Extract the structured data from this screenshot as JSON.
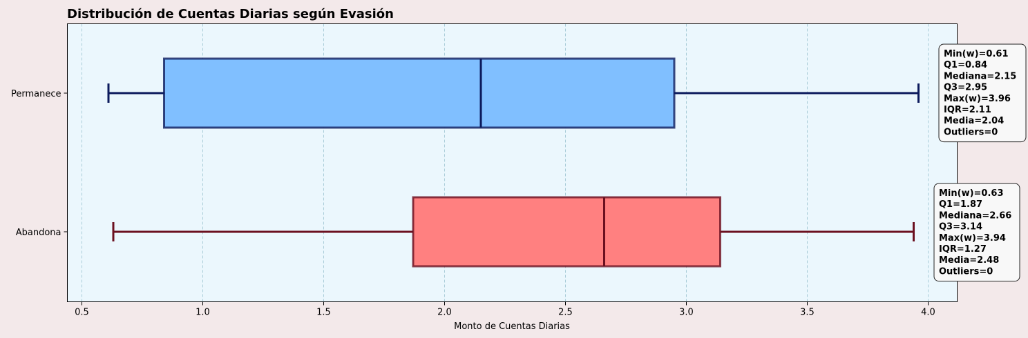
{
  "chart_data": {
    "type": "boxplot",
    "orientation": "horizontal",
    "title": "Distribución de Cuentas Diarias según Evasión",
    "xlabel": "Monto de Cuentas Diarias",
    "ylabel": "",
    "xlim": [
      0.44,
      4.12
    ],
    "xticks": [
      "0.5",
      "1.0",
      "1.5",
      "2.0",
      "2.5",
      "3.0",
      "3.5",
      "4.0"
    ],
    "grid": "x-dashed",
    "categories": [
      "Permanece",
      "Abandona"
    ],
    "series": [
      {
        "category": "Permanece",
        "min": 0.61,
        "q1": 0.84,
        "median": 2.15,
        "q3": 2.95,
        "max": 3.96,
        "box_color": "#80bfff",
        "line_color": "#0b1a5c",
        "stats_lines": [
          "Min(w)=0.61",
          "Q1=0.84",
          "Mediana=2.15",
          "Q3=2.95",
          "Max(w)=3.96",
          "IQR=2.11",
          "Media=2.04",
          "Outliers=0"
        ]
      },
      {
        "category": "Abandona",
        "min": 0.63,
        "q1": 1.87,
        "median": 2.66,
        "q3": 3.14,
        "max": 3.94,
        "box_color": "#ff8080",
        "line_color": "#6b1020",
        "stats_lines": [
          "Min(w)=0.63",
          "Q1=1.87",
          "Mediana=2.66",
          "Q3=3.14",
          "Max(w)=3.94",
          "IQR=1.27",
          "Media=2.48",
          "Outliers=0"
        ]
      }
    ],
    "colors": {
      "figure_bg": "#f3e9ea",
      "plot_bg": "#ebf7fd",
      "grid": "#a9ccd8"
    }
  }
}
